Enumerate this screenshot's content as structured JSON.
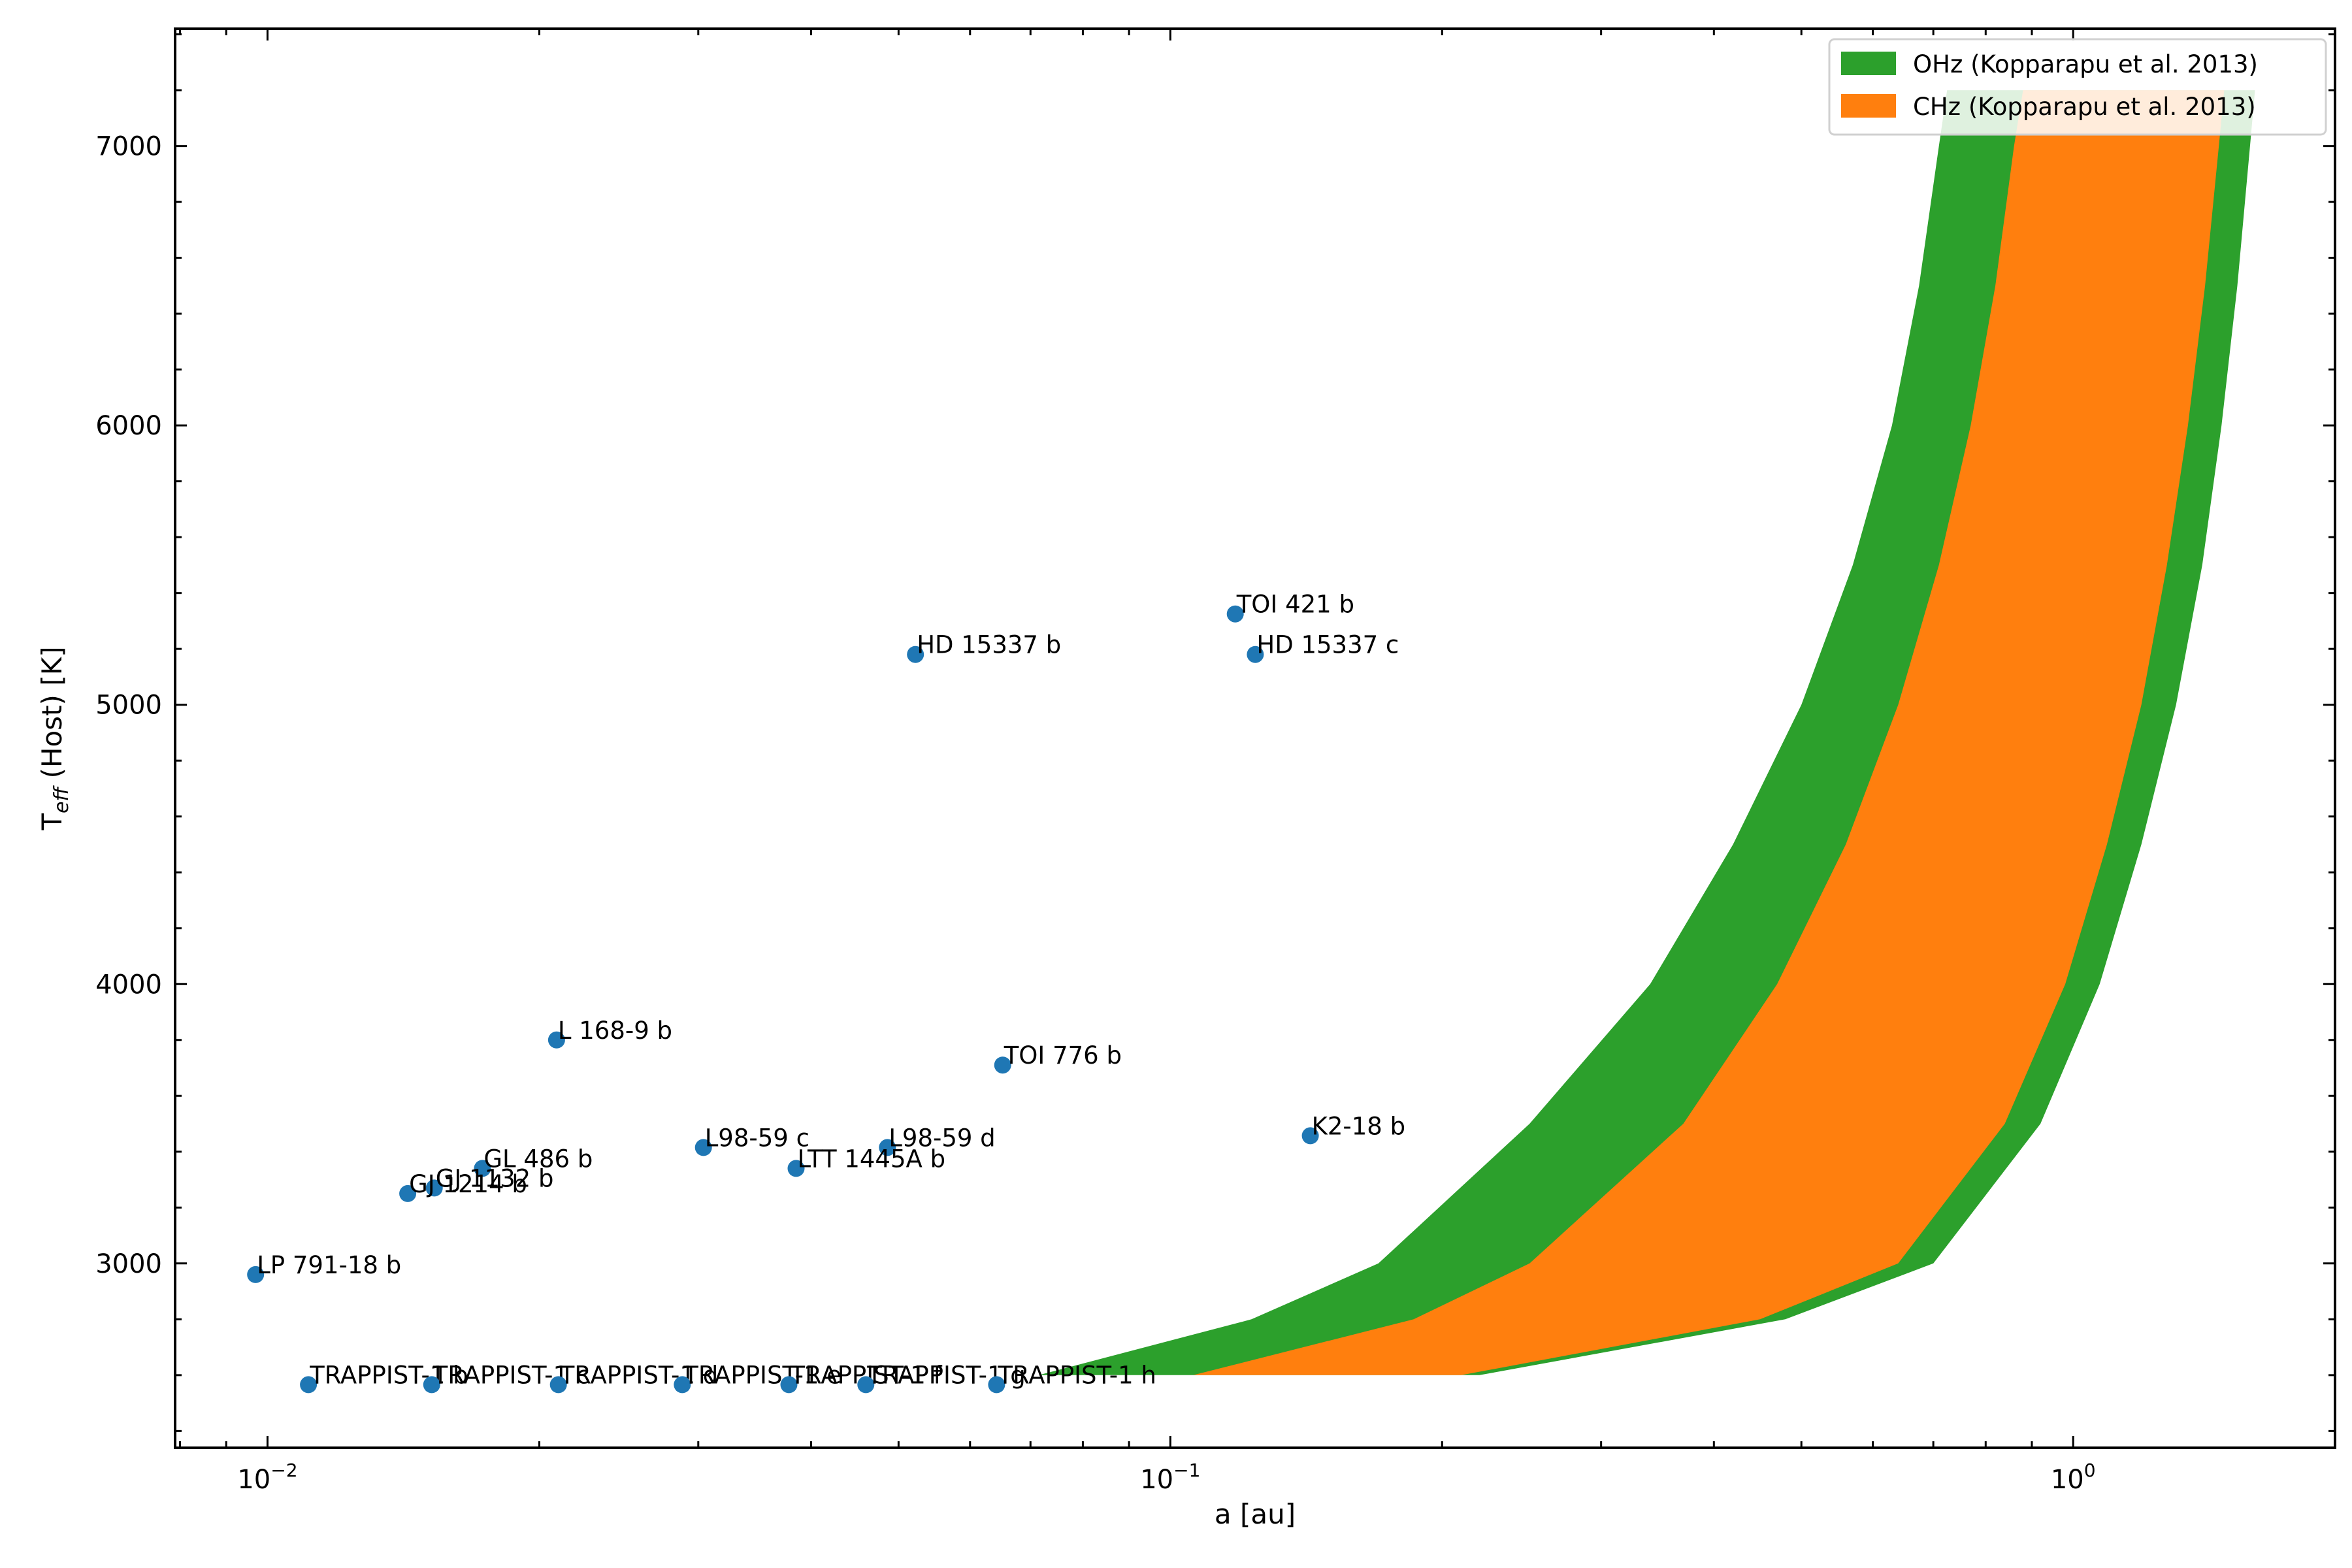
{
  "chart_data": {
    "type": "scatter",
    "title": "",
    "xlabel": "a [au]",
    "ylabel_main": "T",
    "ylabel_sub": "eff",
    "ylabel_rest": " (Host) [K]",
    "xscale": "log",
    "xlim": [
      0.0079,
      1.95
    ],
    "ylim": [
      2340,
      7420
    ],
    "xticks": [
      {
        "value": 0.01,
        "base": "10",
        "exp": "−2"
      },
      {
        "value": 0.1,
        "base": "10",
        "exp": "−1"
      },
      {
        "value": 1,
        "base": "10",
        "exp": "0"
      }
    ],
    "yticks": [
      3000,
      4000,
      5000,
      6000,
      7000
    ],
    "grid": false,
    "legend_position": "top-right",
    "colors": {
      "points": "#1f77b4",
      "ohz": "#2ca02c",
      "chz": "#ff7f0e"
    },
    "zones": [
      {
        "name": "OHz (Kopparapu et al. 2013)",
        "color": "#2ca02c",
        "teff": [
          2600,
          2800,
          3000,
          3500,
          4000,
          4500,
          5000,
          5500,
          6000,
          6500,
          7000,
          7200
        ],
        "inner": [
          0.0715,
          0.123,
          0.17,
          0.25,
          0.34,
          0.42,
          0.5,
          0.57,
          0.63,
          0.675,
          0.71,
          0.725
        ],
        "outer": [
          0.22,
          0.48,
          0.7,
          0.92,
          1.07,
          1.19,
          1.3,
          1.39,
          1.46,
          1.52,
          1.57,
          1.59
        ]
      },
      {
        "name": "CHz (Kopparapu et al. 2013)",
        "color": "#ff7f0e",
        "teff": [
          2600,
          2800,
          3000,
          3500,
          4000,
          4500,
          5000,
          5500,
          6000,
          6500,
          7000,
          7200
        ],
        "inner": [
          0.106,
          0.186,
          0.25,
          0.37,
          0.47,
          0.56,
          0.64,
          0.71,
          0.77,
          0.82,
          0.86,
          0.88
        ],
        "outer": [
          0.21,
          0.45,
          0.64,
          0.84,
          0.98,
          1.09,
          1.19,
          1.27,
          1.34,
          1.4,
          1.45,
          1.47
        ]
      }
    ],
    "points": [
      {
        "name": "TOI 421 b",
        "a": 0.118,
        "teff": 5325
      },
      {
        "name": "HD 15337 b",
        "a": 0.0522,
        "teff": 5180
      },
      {
        "name": "HD 15337 c",
        "a": 0.1242,
        "teff": 5180
      },
      {
        "name": "L 168-9 b",
        "a": 0.0209,
        "teff": 3800
      },
      {
        "name": "TOI 776 b",
        "a": 0.0652,
        "teff": 3710
      },
      {
        "name": "K2-18 b",
        "a": 0.1429,
        "teff": 3457
      },
      {
        "name": "L98-59 c",
        "a": 0.0304,
        "teff": 3415
      },
      {
        "name": "L98-59 d",
        "a": 0.0486,
        "teff": 3415
      },
      {
        "name": "LTT 1445A b",
        "a": 0.0385,
        "teff": 3340
      },
      {
        "name": "GL 486 b",
        "a": 0.0173,
        "teff": 3340
      },
      {
        "name": "GJ 1132 b",
        "a": 0.0153,
        "teff": 3270
      },
      {
        "name": "GJ 1214 b",
        "a": 0.0143,
        "teff": 3250
      },
      {
        "name": "LP 791-18 b",
        "a": 0.0097,
        "teff": 2960
      },
      {
        "name": "TRAPPIST-1 b",
        "a": 0.0111,
        "teff": 2566
      },
      {
        "name": "TRAPPIST-1 c",
        "a": 0.0152,
        "teff": 2566
      },
      {
        "name": "TRAPPIST-1 d",
        "a": 0.021,
        "teff": 2566
      },
      {
        "name": "TRAPPIST-1 e",
        "a": 0.0288,
        "teff": 2566
      },
      {
        "name": "TRAPPIST-1 f",
        "a": 0.0378,
        "teff": 2566
      },
      {
        "name": "TRAPPIST-1 g",
        "a": 0.046,
        "teff": 2566
      },
      {
        "name": "TRAPPIST-1 h",
        "a": 0.0642,
        "teff": 2566
      }
    ]
  }
}
